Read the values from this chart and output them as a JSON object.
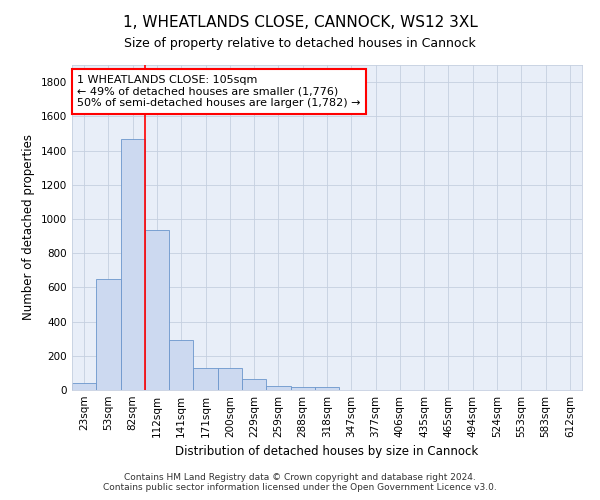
{
  "title": "1, WHEATLANDS CLOSE, CANNOCK, WS12 3XL",
  "subtitle": "Size of property relative to detached houses in Cannock",
  "xlabel": "Distribution of detached houses by size in Cannock",
  "ylabel": "Number of detached properties",
  "categories": [
    "23sqm",
    "53sqm",
    "82sqm",
    "112sqm",
    "141sqm",
    "171sqm",
    "200sqm",
    "229sqm",
    "259sqm",
    "288sqm",
    "318sqm",
    "347sqm",
    "377sqm",
    "406sqm",
    "435sqm",
    "465sqm",
    "494sqm",
    "524sqm",
    "553sqm",
    "583sqm",
    "612sqm"
  ],
  "bar_heights": [
    40,
    650,
    1470,
    935,
    290,
    130,
    130,
    65,
    25,
    20,
    15,
    0,
    0,
    0,
    0,
    0,
    0,
    0,
    0,
    0,
    0
  ],
  "bar_color": "#ccd9f0",
  "bar_edge_color": "#6b96cc",
  "red_line_index": 2.5,
  "annotation_line1": "1 WHEATLANDS CLOSE: 105sqm",
  "annotation_line2": "← 49% of detached houses are smaller (1,776)",
  "annotation_line3": "50% of semi-detached houses are larger (1,782) →",
  "ylim": [
    0,
    1900
  ],
  "yticks": [
    0,
    200,
    400,
    600,
    800,
    1000,
    1200,
    1400,
    1600,
    1800
  ],
  "footer_line1": "Contains HM Land Registry data © Crown copyright and database right 2024.",
  "footer_line2": "Contains public sector information licensed under the Open Government Licence v3.0.",
  "background_color": "#ffffff",
  "axes_bg_color": "#e8eef8",
  "grid_color": "#c5cfe0",
  "title_fontsize": 11,
  "subtitle_fontsize": 9,
  "axis_label_fontsize": 8.5,
  "tick_fontsize": 7.5,
  "annotation_fontsize": 8,
  "footer_fontsize": 6.5
}
